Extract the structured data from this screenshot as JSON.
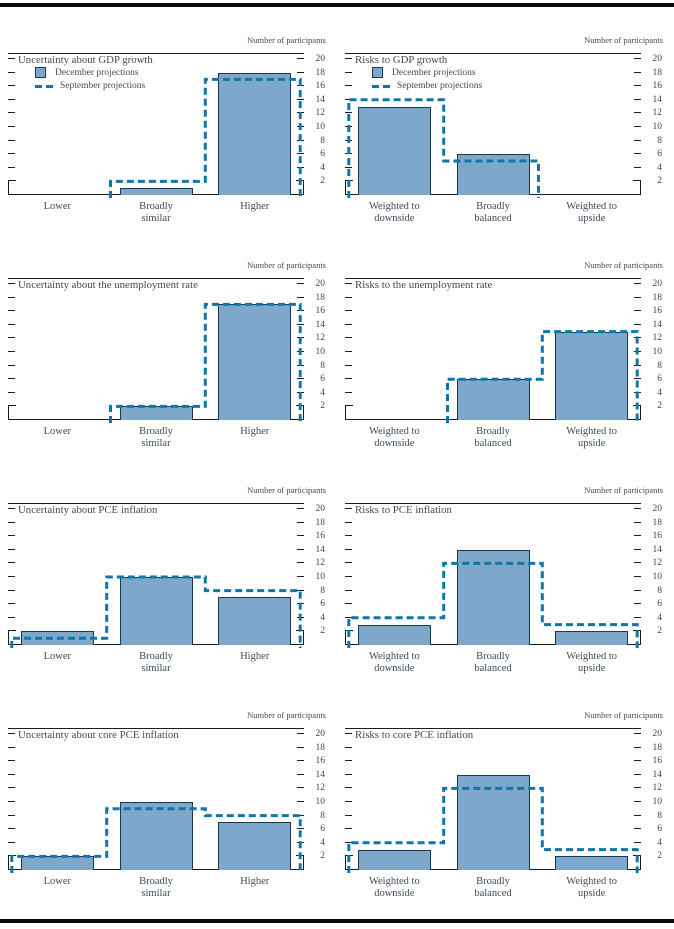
{
  "figure": {
    "ylabel": "Number of participants",
    "legend": {
      "december": "December projections",
      "september": "September projections"
    }
  },
  "axis": {
    "ymin": 0,
    "ymax": 20,
    "yticks": [
      2,
      4,
      6,
      8,
      10,
      12,
      14,
      16,
      18,
      20
    ]
  },
  "colors": {
    "bar_fill": "#7EA8CB",
    "bar_border": "#1A3A54",
    "september_dash": "#1076A8",
    "text": "#414b57",
    "axis_line": "#1b1b1b"
  },
  "chart_data": [
    {
      "type": "bar",
      "title": "Uncertainty about GDP growth",
      "ylabel": "Number of participants",
      "ylim": [
        0,
        20
      ],
      "legend_visible": true,
      "categories": [
        [
          "Lower"
        ],
        [
          "Broadly",
          "similar"
        ],
        [
          "Higher"
        ]
      ],
      "series": [
        {
          "name": "December projections",
          "style": "filled-bar",
          "values": [
            0,
            1,
            18
          ]
        },
        {
          "name": "September projections",
          "style": "dashed-outline",
          "values": [
            0,
            2,
            17
          ]
        }
      ]
    },
    {
      "type": "bar",
      "title": "Risks to GDP growth",
      "ylabel": "Number of participants",
      "ylim": [
        0,
        20
      ],
      "legend_visible": true,
      "categories": [
        [
          "Weighted to",
          "downside"
        ],
        [
          "Broadly",
          "balanced"
        ],
        [
          "Weighted to",
          "upside"
        ]
      ],
      "series": [
        {
          "name": "December projections",
          "style": "filled-bar",
          "values": [
            13,
            6,
            0
          ]
        },
        {
          "name": "September projections",
          "style": "dashed-outline",
          "values": [
            14,
            5,
            0
          ]
        }
      ]
    },
    {
      "type": "bar",
      "title": "Uncertainty about the unemployment rate",
      "ylabel": "Number of participants",
      "ylim": [
        0,
        20
      ],
      "legend_visible": false,
      "categories": [
        [
          "Lower"
        ],
        [
          "Broadly",
          "similar"
        ],
        [
          "Higher"
        ]
      ],
      "series": [
        {
          "name": "December projections",
          "style": "filled-bar",
          "values": [
            0,
            2,
            17
          ]
        },
        {
          "name": "September projections",
          "style": "dashed-outline",
          "values": [
            0,
            2,
            17
          ]
        }
      ]
    },
    {
      "type": "bar",
      "title": "Risks to the unemployment rate",
      "ylabel": "Number of participants",
      "ylim": [
        0,
        20
      ],
      "legend_visible": false,
      "categories": [
        [
          "Weighted to",
          "downside"
        ],
        [
          "Broadly",
          "balanced"
        ],
        [
          "Weighted to",
          "upside"
        ]
      ],
      "series": [
        {
          "name": "December projections",
          "style": "filled-bar",
          "values": [
            0,
            6,
            13
          ]
        },
        {
          "name": "September projections",
          "style": "dashed-outline",
          "values": [
            0,
            6,
            13
          ]
        }
      ]
    },
    {
      "type": "bar",
      "title": "Uncertainty about PCE inflation",
      "ylabel": "Number of participants",
      "ylim": [
        0,
        20
      ],
      "legend_visible": false,
      "categories": [
        [
          "Lower"
        ],
        [
          "Broadly",
          "similar"
        ],
        [
          "Higher"
        ]
      ],
      "series": [
        {
          "name": "December projections",
          "style": "filled-bar",
          "values": [
            2,
            10,
            7
          ]
        },
        {
          "name": "September projections",
          "style": "dashed-outline",
          "values": [
            1,
            10,
            8
          ]
        }
      ]
    },
    {
      "type": "bar",
      "title": "Risks to PCE inflation",
      "ylabel": "Number of participants",
      "ylim": [
        0,
        20
      ],
      "legend_visible": false,
      "categories": [
        [
          "Weighted to",
          "downside"
        ],
        [
          "Broadly",
          "balanced"
        ],
        [
          "Weighted to",
          "upside"
        ]
      ],
      "series": [
        {
          "name": "December projections",
          "style": "filled-bar",
          "values": [
            3,
            14,
            2
          ]
        },
        {
          "name": "September projections",
          "style": "dashed-outline",
          "values": [
            4,
            12,
            3
          ]
        }
      ]
    },
    {
      "type": "bar",
      "title": "Uncertainty about core PCE inflation",
      "ylabel": "Number of participants",
      "ylim": [
        0,
        20
      ],
      "legend_visible": false,
      "categories": [
        [
          "Lower"
        ],
        [
          "Broadly",
          "similar"
        ],
        [
          "Higher"
        ]
      ],
      "series": [
        {
          "name": "December projections",
          "style": "filled-bar",
          "values": [
            2,
            10,
            7
          ]
        },
        {
          "name": "September projections",
          "style": "dashed-outline",
          "values": [
            2,
            9,
            8
          ]
        }
      ]
    },
    {
      "type": "bar",
      "title": "Risks to core PCE inflation",
      "ylabel": "Number of participants",
      "ylim": [
        0,
        20
      ],
      "legend_visible": false,
      "categories": [
        [
          "Weighted to",
          "downside"
        ],
        [
          "Broadly",
          "balanced"
        ],
        [
          "Weighted to",
          "upside"
        ]
      ],
      "series": [
        {
          "name": "December projections",
          "style": "filled-bar",
          "values": [
            3,
            14,
            2
          ]
        },
        {
          "name": "September projections",
          "style": "dashed-outline",
          "values": [
            4,
            12,
            3
          ]
        }
      ]
    }
  ]
}
